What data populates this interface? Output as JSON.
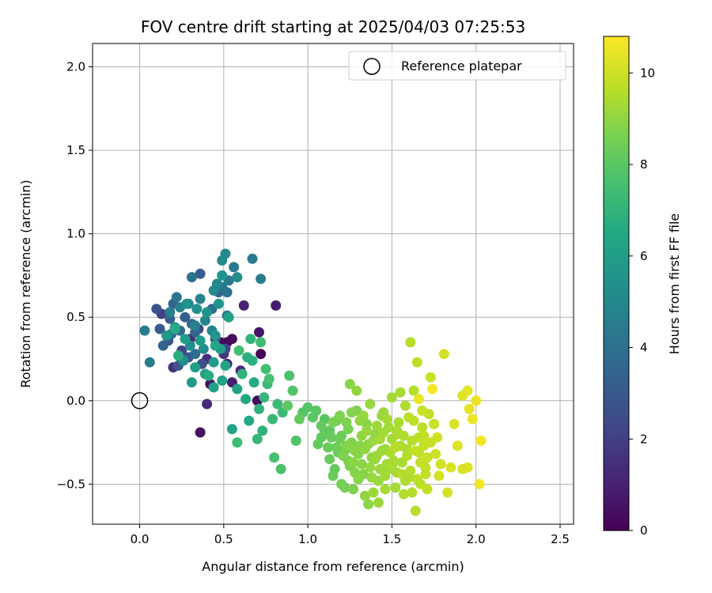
{
  "chart_data": {
    "type": "scatter",
    "title": "FOV centre drift starting at 2025/04/03 07:25:53",
    "xlabel": "Angular distance from reference (arcmin)",
    "ylabel": "Rotation from reference (arcmin)",
    "xlim": [
      -0.28,
      2.58
    ],
    "ylim": [
      -0.74,
      2.14
    ],
    "xticks": [
      0.0,
      0.5,
      1.0,
      1.5,
      2.0,
      2.5
    ],
    "xtick_labels": [
      "0.0",
      "0.5",
      "1.0",
      "1.5",
      "2.0",
      "2.5"
    ],
    "yticks": [
      -0.5,
      0.0,
      0.5,
      1.0,
      1.5,
      2.0
    ],
    "ytick_labels": [
      "−0.5",
      "0.0",
      "0.5",
      "1.0",
      "1.5",
      "2.0"
    ],
    "grid": true,
    "legend": {
      "position": "top-right",
      "entries": [
        "Reference platepar"
      ]
    },
    "reference_point": {
      "x": 0.0,
      "y": 0.0,
      "label": "Reference platepar"
    },
    "colorbar": {
      "label": "Hours from first FF file",
      "colormap": "viridis",
      "range": [
        0,
        10.8
      ],
      "ticks": [
        0,
        2,
        4,
        6,
        8,
        10
      ],
      "tick_labels": [
        "0",
        "2",
        "4",
        "6",
        "8",
        "10"
      ]
    },
    "points": [
      [
        0.72,
        0.28,
        0.1
      ],
      [
        0.48,
        0.35,
        0.2
      ],
      [
        0.52,
        0.35,
        0.3
      ],
      [
        0.55,
        0.37,
        0.3
      ],
      [
        0.42,
        0.1,
        0.4
      ],
      [
        0.36,
        -0.19,
        0.5
      ],
      [
        0.71,
        0.41,
        0.6
      ],
      [
        0.81,
        0.57,
        0.8
      ],
      [
        0.62,
        0.57,
        1.0
      ],
      [
        0.52,
        0.22,
        1.0
      ],
      [
        0.4,
        -0.02,
        1.3
      ],
      [
        0.4,
        0.25,
        1.4
      ],
      [
        0.2,
        0.2,
        1.5
      ],
      [
        0.3,
        0.37,
        1.5
      ],
      [
        0.5,
        0.28,
        1.6
      ],
      [
        0.7,
        -0.0,
        0.3
      ],
      [
        0.55,
        0.11,
        0.9
      ],
      [
        0.6,
        0.18,
        1.2
      ],
      [
        0.13,
        0.52,
        2.0
      ],
      [
        0.25,
        0.3,
        2.2
      ],
      [
        0.35,
        0.43,
        2.3
      ],
      [
        0.45,
        0.37,
        2.4
      ],
      [
        0.51,
        0.31,
        2.5
      ],
      [
        0.37,
        0.22,
        2.6
      ],
      [
        0.1,
        0.55,
        2.7
      ],
      [
        0.17,
        0.36,
        2.8
      ],
      [
        0.23,
        0.21,
        2.9
      ],
      [
        0.29,
        0.26,
        3.0
      ],
      [
        0.12,
        0.43,
        3.0
      ],
      [
        0.18,
        0.49,
        3.2
      ],
      [
        0.36,
        0.76,
        3.2
      ],
      [
        0.27,
        0.5,
        3.3
      ],
      [
        0.14,
        0.33,
        3.4
      ],
      [
        0.2,
        0.58,
        3.4
      ],
      [
        0.33,
        0.41,
        3.5
      ],
      [
        0.47,
        0.65,
        3.5
      ],
      [
        0.31,
        0.46,
        3.6
      ],
      [
        0.24,
        0.42,
        3.7
      ],
      [
        0.43,
        0.55,
        3.8
      ],
      [
        0.52,
        0.65,
        3.9
      ],
      [
        0.33,
        0.28,
        3.9
      ],
      [
        0.19,
        0.4,
        4.0
      ],
      [
        0.22,
        0.62,
        4.1
      ],
      [
        0.31,
        0.74,
        4.1
      ],
      [
        0.49,
        0.68,
        4.2
      ],
      [
        0.53,
        0.72,
        4.3
      ],
      [
        0.52,
        0.51,
        4.3
      ],
      [
        0.56,
        0.8,
        4.4
      ],
      [
        0.67,
        0.85,
        4.4
      ],
      [
        0.72,
        0.73,
        4.5
      ],
      [
        0.03,
        0.42,
        4.5
      ],
      [
        0.06,
        0.23,
        4.6
      ],
      [
        0.18,
        0.53,
        4.6
      ],
      [
        0.24,
        0.56,
        4.7
      ],
      [
        0.29,
        0.58,
        4.7
      ],
      [
        0.33,
        0.45,
        4.8
      ],
      [
        0.36,
        0.61,
        4.8
      ],
      [
        0.39,
        0.48,
        4.9
      ],
      [
        0.43,
        0.42,
        4.9
      ],
      [
        0.44,
        0.66,
        5.0
      ],
      [
        0.46,
        0.7,
        5.0
      ],
      [
        0.49,
        0.84,
        5.1
      ],
      [
        0.51,
        0.88,
        5.1
      ],
      [
        0.58,
        0.74,
        5.2
      ],
      [
        0.38,
        0.31,
        5.2
      ],
      [
        0.3,
        0.33,
        5.3
      ],
      [
        0.26,
        0.24,
        5.3
      ],
      [
        0.28,
        0.58,
        5.4
      ],
      [
        0.34,
        0.55,
        5.4
      ],
      [
        0.4,
        0.53,
        5.5
      ],
      [
        0.45,
        0.39,
        5.5
      ],
      [
        0.47,
        0.58,
        5.6
      ],
      [
        0.49,
        0.75,
        5.6
      ],
      [
        0.21,
        0.44,
        5.7
      ],
      [
        0.16,
        0.39,
        5.7
      ],
      [
        0.36,
        0.36,
        5.8
      ],
      [
        0.31,
        0.11,
        5.8
      ],
      [
        0.44,
        0.23,
        5.9
      ],
      [
        0.48,
        0.31,
        5.9
      ],
      [
        0.27,
        0.37,
        6.0
      ],
      [
        0.33,
        0.2,
        6.0
      ],
      [
        0.39,
        0.16,
        6.1
      ],
      [
        0.44,
        0.08,
        6.1
      ],
      [
        0.49,
        0.12,
        6.2
      ],
      [
        0.53,
        0.5,
        6.2
      ],
      [
        0.55,
        -0.17,
        6.3
      ],
      [
        0.58,
        0.07,
        6.3
      ],
      [
        0.45,
        0.33,
        6.4
      ],
      [
        0.51,
        0.21,
        6.4
      ],
      [
        0.63,
        0.01,
        6.5
      ],
      [
        0.65,
        -0.12,
        6.5
      ],
      [
        0.68,
        0.11,
        6.6
      ],
      [
        0.21,
        0.43,
        6.6
      ],
      [
        0.23,
        0.27,
        6.7
      ],
      [
        0.41,
        0.15,
        6.7
      ],
      [
        0.64,
        0.26,
        6.8
      ],
      [
        0.67,
        0.24,
        6.8
      ],
      [
        0.71,
        -0.05,
        6.9
      ],
      [
        0.73,
        -0.18,
        6.9
      ],
      [
        0.61,
        0.16,
        7.0
      ],
      [
        0.66,
        0.37,
        7.0
      ],
      [
        0.7,
        -0.23,
        7.1
      ],
      [
        0.74,
        0.02,
        7.1
      ],
      [
        0.76,
        0.1,
        7.2
      ],
      [
        0.79,
        -0.11,
        7.2
      ],
      [
        0.82,
        -0.02,
        7.3
      ],
      [
        0.85,
        -0.07,
        7.3
      ],
      [
        0.58,
        -0.25,
        7.4
      ],
      [
        0.72,
        0.35,
        7.4
      ],
      [
        0.59,
        0.3,
        7.5
      ],
      [
        0.75,
        0.19,
        7.5
      ],
      [
        0.77,
        0.13,
        7.6
      ],
      [
        0.8,
        -0.34,
        7.6
      ],
      [
        0.84,
        -0.41,
        7.7
      ],
      [
        0.89,
        0.15,
        7.7
      ],
      [
        0.91,
        0.06,
        7.8
      ],
      [
        0.93,
        -0.24,
        7.8
      ],
      [
        0.97,
        -0.07,
        7.9
      ],
      [
        1.0,
        -0.04,
        7.9
      ],
      [
        1.03,
        -0.1,
        8.0
      ],
      [
        1.05,
        -0.06,
        8.0
      ],
      [
        1.08,
        -0.22,
        8.1
      ],
      [
        0.88,
        -0.03,
        8.1
      ],
      [
        0.95,
        -0.11,
        8.2
      ],
      [
        1.1,
        -0.19,
        8.2
      ],
      [
        1.13,
        -0.35,
        8.3
      ],
      [
        1.15,
        -0.45,
        8.3
      ],
      [
        1.17,
        -0.12,
        8.4
      ],
      [
        1.19,
        -0.23,
        8.4
      ],
      [
        1.2,
        -0.5,
        8.5
      ],
      [
        1.22,
        -0.3,
        8.5
      ],
      [
        1.24,
        -0.17,
        8.6
      ],
      [
        1.25,
        -0.39,
        8.6
      ],
      [
        1.27,
        -0.53,
        8.7
      ],
      [
        1.29,
        -0.06,
        8.7
      ],
      [
        1.31,
        -0.27,
        8.8
      ],
      [
        1.33,
        -0.44,
        8.8
      ],
      [
        1.35,
        -0.14,
        8.9
      ],
      [
        1.36,
        -0.62,
        8.9
      ],
      [
        1.38,
        -0.34,
        9.0
      ],
      [
        1.4,
        -0.2,
        9.0
      ],
      [
        1.42,
        -0.48,
        9.1
      ],
      [
        1.44,
        -0.09,
        9.1
      ],
      [
        1.46,
        -0.29,
        9.2
      ],
      [
        1.48,
        -0.41,
        9.2
      ],
      [
        1.5,
        -0.23,
        9.3
      ],
      [
        1.52,
        -0.52,
        9.3
      ],
      [
        1.54,
        -0.13,
        9.4
      ],
      [
        1.56,
        -0.37,
        9.4
      ],
      [
        1.58,
        -0.03,
        9.5
      ],
      [
        1.6,
        -0.46,
        9.5
      ],
      [
        1.62,
        -0.24,
        9.6
      ],
      [
        1.64,
        -0.66,
        9.6
      ],
      [
        1.66,
        -0.31,
        9.7
      ],
      [
        1.68,
        -0.16,
        9.7
      ],
      [
        1.7,
        -0.4,
        9.8
      ],
      [
        1.72,
        -0.08,
        9.8
      ],
      [
        1.25,
        0.1,
        8.9
      ],
      [
        1.29,
        0.06,
        9.0
      ],
      [
        1.33,
        -0.09,
        9.1
      ],
      [
        1.37,
        -0.02,
        9.1
      ],
      [
        1.41,
        -0.15,
        9.2
      ],
      [
        1.45,
        -0.07,
        9.2
      ],
      [
        1.47,
        -0.11,
        9.3
      ],
      [
        1.5,
        0.02,
        9.3
      ],
      [
        1.53,
        -0.18,
        9.4
      ],
      [
        1.55,
        0.05,
        9.4
      ],
      [
        1.57,
        -0.21,
        9.5
      ],
      [
        1.59,
        -0.29,
        9.5
      ],
      [
        1.61,
        0.35,
        9.6
      ],
      [
        1.63,
        0.06,
        9.6
      ],
      [
        1.65,
        0.23,
        9.7
      ],
      [
        1.67,
        -0.5,
        9.7
      ],
      [
        1.69,
        -0.27,
        9.8
      ],
      [
        1.71,
        -0.53,
        9.8
      ],
      [
        1.73,
        0.14,
        9.9
      ],
      [
        1.75,
        -0.14,
        9.9
      ],
      [
        1.77,
        -0.22,
        10.0
      ],
      [
        1.79,
        -0.38,
        10.0
      ],
      [
        1.81,
        0.28,
        10.1
      ],
      [
        1.83,
        -0.55,
        10.1
      ],
      [
        1.85,
        -0.4,
        10.2
      ],
      [
        1.87,
        -0.14,
        10.2
      ],
      [
        1.89,
        -0.27,
        10.3
      ],
      [
        1.92,
        0.03,
        10.3
      ],
      [
        1.95,
        0.06,
        10.4
      ],
      [
        1.96,
        -0.05,
        10.4
      ],
      [
        1.98,
        -0.11,
        10.5
      ],
      [
        2.0,
        0.0,
        10.5
      ],
      [
        2.02,
        -0.5,
        10.6
      ],
      [
        2.03,
        -0.24,
        10.6
      ],
      [
        1.74,
        0.07,
        10.7
      ],
      [
        1.76,
        -0.32,
        10.0
      ],
      [
        1.78,
        -0.45,
        10.1
      ],
      [
        1.95,
        -0.4,
        10.3
      ],
      [
        1.92,
        -0.41,
        10.2
      ],
      [
        1.66,
        0.01,
        10.5
      ],
      [
        1.1,
        -0.11,
        8.0
      ],
      [
        1.13,
        -0.18,
        8.1
      ],
      [
        1.16,
        -0.41,
        8.2
      ],
      [
        1.18,
        -0.31,
        8.3
      ],
      [
        1.2,
        -0.21,
        8.4
      ],
      [
        1.22,
        -0.52,
        8.5
      ],
      [
        1.24,
        -0.36,
        8.6
      ],
      [
        1.26,
        -0.25,
        8.7
      ],
      [
        1.28,
        -0.43,
        8.8
      ],
      [
        1.3,
        -0.32,
        8.8
      ],
      [
        1.32,
        -0.38,
        8.9
      ],
      [
        1.34,
        -0.57,
        9.0
      ],
      [
        1.36,
        -0.26,
        9.0
      ],
      [
        1.38,
        -0.46,
        9.1
      ],
      [
        1.4,
        -0.35,
        9.1
      ],
      [
        1.42,
        -0.61,
        9.2
      ],
      [
        1.44,
        -0.3,
        9.2
      ],
      [
        1.46,
        -0.53,
        9.3
      ],
      [
        1.48,
        -0.16,
        9.3
      ],
      [
        1.51,
        -0.36,
        9.4
      ],
      [
        1.53,
        -0.43,
        9.4
      ],
      [
        1.55,
        -0.27,
        9.5
      ],
      [
        1.57,
        -0.56,
        9.5
      ],
      [
        1.59,
        -0.33,
        9.6
      ],
      [
        1.61,
        -0.42,
        9.6
      ],
      [
        1.63,
        -0.12,
        9.7
      ],
      [
        1.65,
        -0.47,
        9.7
      ],
      [
        1.67,
        -0.37,
        9.8
      ],
      [
        1.69,
        -0.21,
        9.8
      ],
      [
        1.71,
        -0.34,
        9.9
      ],
      [
        1.15,
        -0.13,
        8.6
      ],
      [
        1.19,
        -0.09,
        8.7
      ],
      [
        1.21,
        -0.33,
        8.7
      ],
      [
        1.23,
        -0.27,
        8.8
      ],
      [
        1.27,
        -0.37,
        8.9
      ],
      [
        1.3,
        -0.47,
        8.9
      ],
      [
        1.32,
        -0.21,
        9.0
      ],
      [
        1.34,
        -0.29,
        9.0
      ],
      [
        1.37,
        -0.4,
        9.1
      ],
      [
        1.39,
        -0.24,
        9.1
      ],
      [
        1.41,
        -0.33,
        9.2
      ],
      [
        1.43,
        -0.41,
        9.2
      ],
      [
        1.45,
        -0.19,
        9.3
      ],
      [
        1.47,
        -0.38,
        9.3
      ],
      [
        1.49,
        -0.31,
        9.4
      ],
      [
        1.06,
        -0.26,
        8.2
      ],
      [
        1.08,
        -0.15,
        8.2
      ],
      [
        1.12,
        -0.28,
        8.3
      ],
      [
        1.14,
        -0.22,
        8.3
      ],
      [
        1.17,
        -0.28,
        8.4
      ],
      [
        1.52,
        -0.28,
        9.6
      ],
      [
        1.56,
        -0.44,
        9.6
      ],
      [
        1.6,
        -0.1,
        9.7
      ],
      [
        1.64,
        -0.3,
        9.8
      ],
      [
        1.68,
        -0.06,
        9.9
      ],
      [
        1.23,
        -0.13,
        8.7
      ],
      [
        1.26,
        -0.07,
        8.8
      ],
      [
        1.28,
        -0.3,
        8.9
      ],
      [
        1.31,
        -0.12,
        9.0
      ],
      [
        1.35,
        -0.18,
        9.1
      ],
      [
        1.39,
        -0.55,
        9.2
      ],
      [
        1.43,
        -0.23,
        9.3
      ],
      [
        1.46,
        -0.45,
        9.3
      ],
      [
        1.5,
        -0.39,
        9.4
      ],
      [
        1.54,
        -0.2,
        9.5
      ],
      [
        1.58,
        -0.48,
        9.5
      ],
      [
        1.62,
        -0.55,
        9.6
      ],
      [
        1.66,
        -0.22,
        9.7
      ],
      [
        1.7,
        -0.44,
        9.8
      ],
      [
        1.73,
        -0.25,
        9.9
      ]
    ]
  }
}
